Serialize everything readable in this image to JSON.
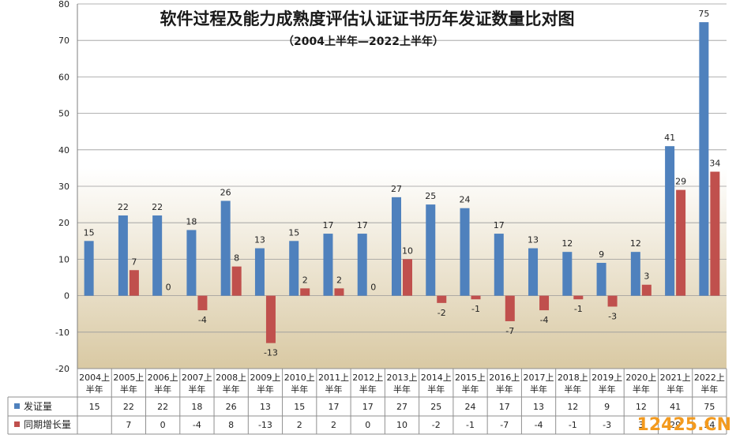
{
  "chart_data": {
    "type": "bar",
    "title": "软件过程及能力成熟度评估认证证书历年发证数量比对图",
    "subtitle": "（2004上半年—2022上半年）",
    "categories": [
      "2004上半年",
      "2005上半年",
      "2006上半年",
      "2007上半年",
      "2008上半年",
      "2009上半年",
      "2010上半年",
      "2011上半年",
      "2012上半年",
      "2013上半年",
      "2014上半年",
      "2015上半年",
      "2016上半年",
      "2017上半年",
      "2018上半年",
      "2019上半年",
      "2020上半年",
      "2021上半年",
      "2022上半年"
    ],
    "series": [
      {
        "name": "发证量",
        "color": "#4f81bd",
        "values": [
          15,
          22,
          22,
          18,
          26,
          13,
          15,
          17,
          17,
          27,
          25,
          24,
          17,
          13,
          12,
          9,
          12,
          41,
          75
        ]
      },
      {
        "name": "同期增长量",
        "color": "#c0504d",
        "values": [
          null,
          7,
          0,
          -4,
          8,
          -13,
          2,
          2,
          0,
          10,
          -2,
          -1,
          -7,
          -4,
          -1,
          -3,
          3,
          29,
          34
        ]
      }
    ],
    "ylim": [
      -20,
      80
    ],
    "yticks": [
      -20,
      -10,
      0,
      10,
      20,
      30,
      40,
      50,
      60,
      70,
      80
    ],
    "grid": true,
    "legend": "data table",
    "background": {
      "top": "#ffffff",
      "bottom": "#d9c9a3"
    }
  },
  "watermark": {
    "text": "12425.CN",
    "color": "#f39a1e"
  }
}
